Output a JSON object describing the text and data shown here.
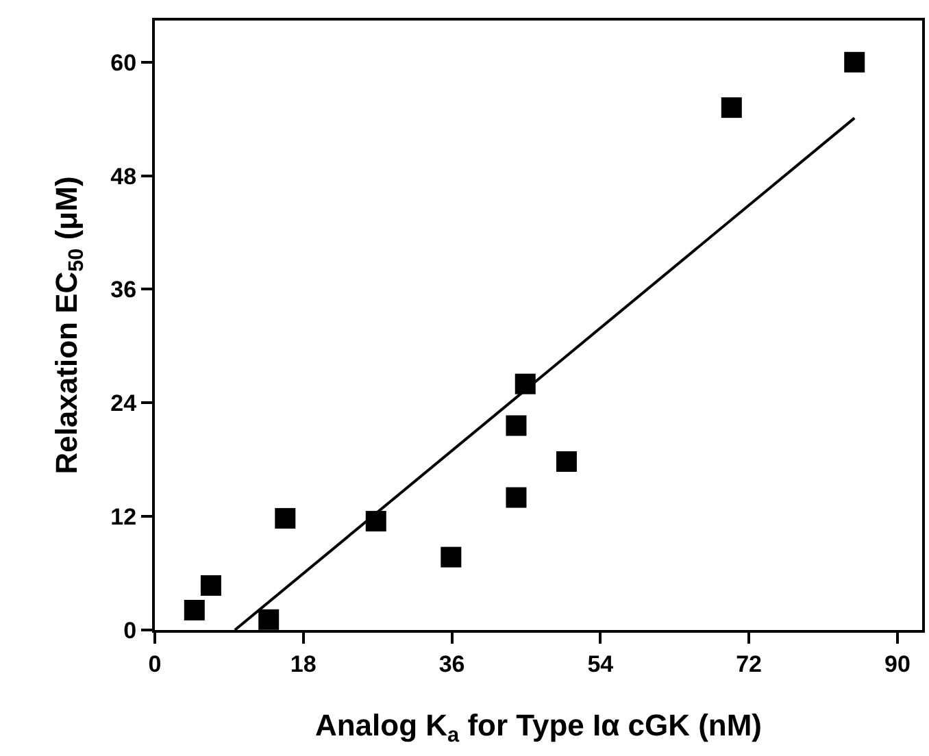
{
  "chart_data": {
    "type": "scatter",
    "xlabel": "Analog K$_{a}$ for Type Iα cGK (nM)",
    "ylabel": "Relaxation EC$_{50}$ (μM)",
    "x": [
      4.8,
      6.8,
      13.8,
      15.8,
      26.8,
      35.9,
      43.8,
      44.9,
      43.8,
      49.9,
      69.9,
      84.8
    ],
    "series": [
      {
        "color": "#000000",
        "marker": "square",
        "values": [
          2.1,
          4.7,
          1.1,
          11.8,
          11.5,
          7.7,
          21.6,
          26.0,
          14.0,
          17.8,
          55.2,
          60.0
        ]
      },
      {
        "type": "line",
        "color": "#000000",
        "x": [
          9.7,
          84.8
        ],
        "values": [
          0,
          54.1
        ],
        "line_style": "solid"
      }
    ],
    "xlim": [
      0,
      93
    ],
    "ylim": [
      0,
      64.4
    ],
    "xticks": [
      0,
      18,
      36,
      54,
      72,
      90
    ],
    "yticks": [
      0,
      12,
      24,
      36,
      48,
      60
    ]
  }
}
